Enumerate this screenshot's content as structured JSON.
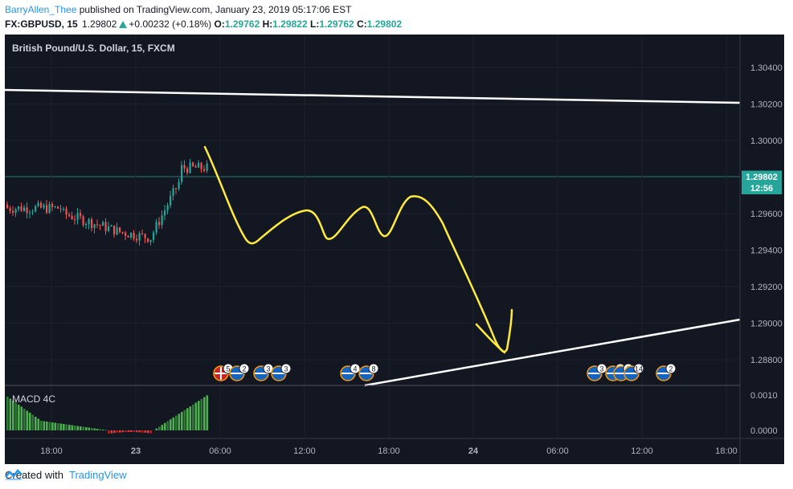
{
  "publish_line": {
    "username": "BarryAllen_Thee",
    "text": " published on TradingView.com, January 23, 2019 05:17:06 EST"
  },
  "quote_line": {
    "symbol": "FX:GBPUSD, 15",
    "price": "1.29802",
    "change": "+0.00232 (+0.18%)",
    "o_label": "O:",
    "o": "1.29762",
    "h_label": "H:",
    "h": "1.29822",
    "l_label": "L:",
    "l": "1.29762",
    "c_label": "C:",
    "c": "1.29802"
  },
  "chart": {
    "legend": "British Pound/U.S. Dollar, 15, FXCM",
    "price_ticks": [
      "1.30400",
      "1.30200",
      "1.30000",
      "1.29600",
      "1.29400",
      "1.29200",
      "1.29000",
      "1.28800"
    ],
    "price_tick_values": [
      1.304,
      1.302,
      1.3,
      1.296,
      1.294,
      1.292,
      1.29,
      1.288
    ],
    "last_price_label": "1.29802",
    "last_price": 1.29802,
    "countdown_label": "12:56",
    "time_ticks": [
      "18:00",
      "23",
      "06:00",
      "12:00",
      "18:00",
      "24",
      "06:00",
      "12:00",
      "18:00"
    ],
    "time_tick_bold": [
      false,
      true,
      false,
      false,
      false,
      true,
      false,
      false,
      false
    ],
    "indicator": {
      "name": "MACD 4C",
      "ticks": [
        "0.0010",
        "0.0000"
      ]
    },
    "event_badges": [
      "5",
      "2",
      "3",
      "3",
      "4",
      "8",
      "3",
      "3",
      "2",
      "14",
      "2"
    ],
    "colors": {
      "background": "#131722",
      "up": "#26a69a",
      "down": "#ef5350",
      "drawing_yellow": "#ffeb3b",
      "trendline": "#ffffff",
      "price_tag": "#26a69a"
    }
  },
  "footer": {
    "created_with": "Created with",
    "brand": "TradingView"
  }
}
